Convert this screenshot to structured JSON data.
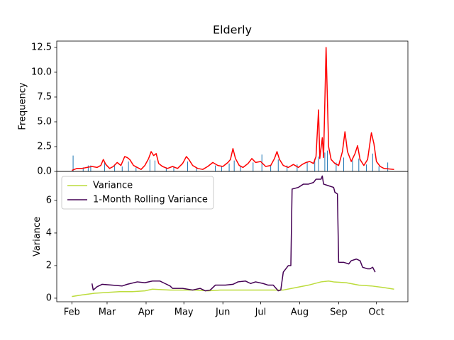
{
  "chart_data": [
    {
      "type": "line",
      "title": "Elderly",
      "y_label": "Frequency",
      "xlim": [
        20,
        299
      ],
      "ylim": [
        0,
        13.14
      ],
      "yticks": [
        {
          "value": 0,
          "label": "0.0"
        },
        2.5,
        {
          "value": 5,
          "label": "5.0"
        },
        7.5,
        {
          "value": 10,
          "label": "10.0"
        },
        12.5
      ],
      "series": [
        {
          "type": "bar",
          "color": "#1f77b4",
          "x": [
            33,
            41,
            45,
            47,
            58,
            66,
            72,
            77,
            83,
            94,
            98,
            107,
            113,
            124,
            131,
            146,
            151,
            157,
            161,
            166,
            176,
            183,
            190,
            196,
            203,
            211,
            219,
            225,
            228,
            233,
            235,
            242,
            248,
            255,
            260,
            266,
            271,
            276,
            283
          ],
          "values": [
            1.6,
            0.4,
            0.6,
            0.6,
            0.9,
            0.7,
            0.5,
            1.0,
            0.4,
            1.2,
            1.1,
            0.4,
            0.5,
            1.0,
            0.4,
            0.6,
            0.5,
            0.8,
            1.1,
            0.5,
            0.9,
            1.7,
            0.6,
            1.2,
            0.6,
            0.7,
            0.9,
            1.3,
            1.5,
            1.9,
            2.1,
            0.9,
            1.4,
            1.1,
            1.3,
            0.7,
            1.8,
            0.5,
            0.9
          ]
        },
        {
          "type": "line",
          "color": "#ff0000",
          "x": [
            32,
            36,
            40,
            44,
            48,
            52,
            55,
            57,
            59,
            62,
            65,
            68,
            71,
            74,
            76,
            78,
            81,
            84,
            87,
            90,
            93,
            95,
            97,
            99,
            101,
            104,
            108,
            112,
            116,
            120,
            123,
            125,
            128,
            132,
            136,
            140,
            144,
            148,
            152,
            156,
            158,
            160,
            162,
            165,
            168,
            172,
            175,
            178,
            182,
            186,
            190,
            193,
            195,
            197,
            200,
            204,
            208,
            212,
            215,
            218,
            221,
            224,
            226,
            228,
            229,
            231,
            232,
            234,
            236,
            238,
            241,
            244,
            247,
            249,
            251,
            254,
            257,
            259,
            261,
            264,
            267,
            270,
            272,
            274,
            277,
            280,
            284,
            288
          ],
          "values": [
            0.1,
            0.3,
            0.3,
            0.4,
            0.5,
            0.4,
            0.6,
            1.2,
            0.7,
            0.3,
            0.5,
            0.9,
            0.6,
            1.5,
            1.4,
            1.2,
            0.6,
            0.4,
            0.2,
            0.6,
            1.3,
            2.0,
            1.6,
            1.8,
            0.8,
            0.5,
            0.3,
            0.5,
            0.3,
            0.8,
            1.5,
            1.2,
            0.6,
            0.3,
            0.2,
            0.5,
            0.9,
            0.6,
            0.5,
            0.9,
            1.2,
            2.3,
            1.3,
            0.6,
            0.4,
            0.8,
            1.3,
            0.9,
            1.0,
            0.5,
            0.6,
            1.3,
            2.0,
            1.2,
            0.6,
            0.4,
            0.7,
            0.4,
            0.7,
            0.9,
            1.0,
            0.8,
            1.5,
            6.2,
            1.3,
            3.4,
            1.4,
            12.5,
            2.5,
            1.2,
            0.8,
            0.6,
            2.0,
            4.0,
            2.0,
            1.0,
            1.8,
            2.6,
            1.2,
            0.6,
            1.2,
            3.9,
            2.8,
            1.0,
            0.5,
            0.3,
            0.25,
            0.2
          ]
        }
      ]
    },
    {
      "type": "line",
      "y_label": "Variance",
      "legend": "upper left",
      "xlim": [
        20,
        299
      ],
      "ylim": [
        -0.22,
        7.78
      ],
      "yticks": [
        0,
        2,
        4,
        6
      ],
      "xticks": [
        {
          "value": 32,
          "label": "Feb"
        },
        {
          "value": 60,
          "label": "Mar"
        },
        {
          "value": 91,
          "label": "Apr"
        },
        {
          "value": 121,
          "label": "May"
        },
        {
          "value": 152,
          "label": "Jun"
        },
        {
          "value": 182,
          "label": "Jul"
        },
        {
          "value": 213,
          "label": "Aug"
        },
        {
          "value": 244,
          "label": "Sep"
        },
        {
          "value": 274,
          "label": "Oct"
        }
      ],
      "series": [
        {
          "name": "Variance",
          "color": "#bcdc3c",
          "x": [
            32,
            40,
            50,
            60,
            70,
            80,
            90,
            96,
            110,
            120,
            130,
            140,
            150,
            160,
            170,
            180,
            190,
            200,
            210,
            220,
            230,
            236,
            240,
            250,
            260,
            270,
            280,
            288
          ],
          "values": [
            0.1,
            0.2,
            0.3,
            0.35,
            0.4,
            0.4,
            0.45,
            0.55,
            0.5,
            0.5,
            0.5,
            0.45,
            0.5,
            0.5,
            0.5,
            0.5,
            0.5,
            0.5,
            0.65,
            0.8,
            1.0,
            1.05,
            1.0,
            0.95,
            0.8,
            0.75,
            0.65,
            0.55
          ]
        },
        {
          "name": "1-Month Rolling Variance",
          "color": "#440154",
          "x": [
            48,
            49,
            52,
            56,
            64,
            72,
            76,
            84,
            90,
            96,
            102,
            106,
            110,
            112,
            120,
            128,
            134,
            138,
            142,
            146,
            154,
            160,
            164,
            170,
            174,
            178,
            184,
            188,
            192,
            196,
            198,
            200,
            202,
            204,
            206,
            207,
            212,
            216,
            220,
            224,
            226,
            230,
            231,
            232,
            236,
            240,
            241,
            243,
            244,
            248,
            252,
            254,
            258,
            261,
            263,
            267,
            269,
            271,
            273
          ],
          "values": [
            0.9,
            0.5,
            0.7,
            0.85,
            0.8,
            0.75,
            0.85,
            1.0,
            0.95,
            1.05,
            1.05,
            0.9,
            0.75,
            0.6,
            0.6,
            0.5,
            0.6,
            0.45,
            0.5,
            0.8,
            0.8,
            0.85,
            1.0,
            1.05,
            0.9,
            1.0,
            0.9,
            0.8,
            0.8,
            0.45,
            0.5,
            1.6,
            1.8,
            2.0,
            2.0,
            6.7,
            6.8,
            7.0,
            7.0,
            7.1,
            7.3,
            7.3,
            7.5,
            7.0,
            6.9,
            6.8,
            6.5,
            6.4,
            2.2,
            2.2,
            2.1,
            2.3,
            2.4,
            2.3,
            1.9,
            1.8,
            1.8,
            1.9,
            1.6
          ]
        }
      ]
    }
  ]
}
